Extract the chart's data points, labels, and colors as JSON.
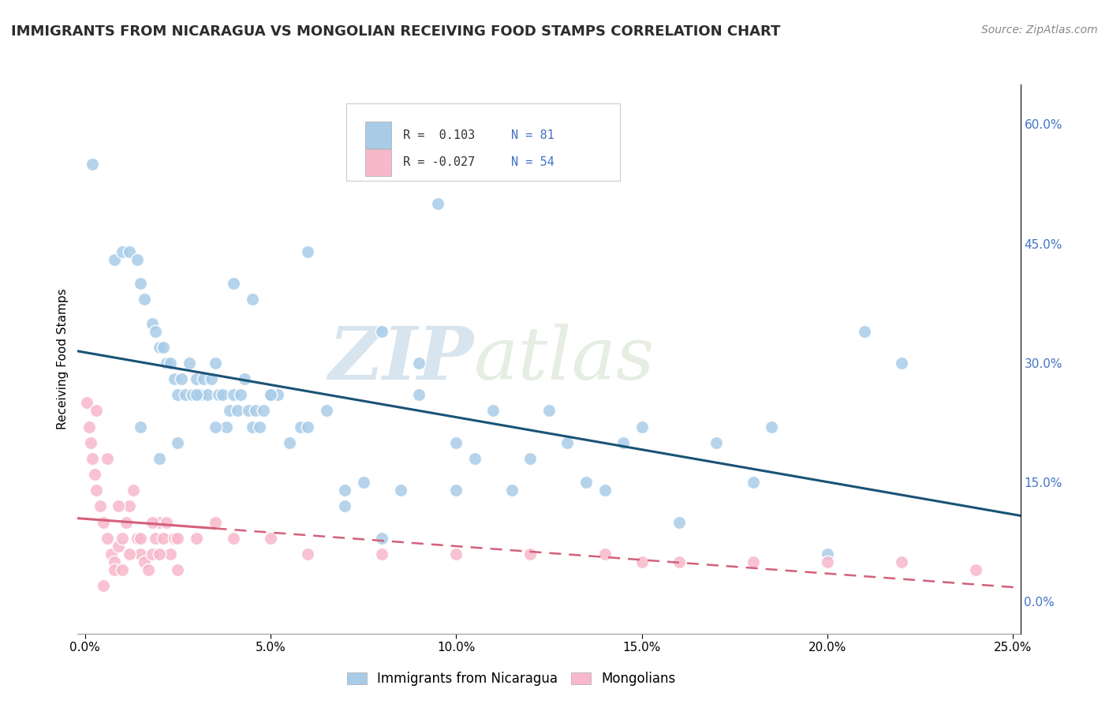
{
  "title": "IMMIGRANTS FROM NICARAGUA VS MONGOLIAN RECEIVING FOOD STAMPS CORRELATION CHART",
  "source_text": "Source: ZipAtlas.com",
  "xlabel_nicaragua": "Immigrants from Nicaragua",
  "xlabel_mongolian": "Mongolians",
  "ylabel": "Receiving Food Stamps",
  "watermark_zip": "ZIP",
  "watermark_atlas": "atlas",
  "xlim": [
    -0.002,
    0.252
  ],
  "ylim": [
    -0.04,
    0.65
  ],
  "xticks": [
    0.0,
    0.05,
    0.1,
    0.15,
    0.2,
    0.25
  ],
  "xticklabels": [
    "0.0%",
    "5.0%",
    "10.0%",
    "15.0%",
    "20.0%",
    "25.0%"
  ],
  "yticks_right": [
    0.0,
    0.15,
    0.3,
    0.45,
    0.6
  ],
  "yticklabels_right": [
    "0.0%",
    "15.0%",
    "30.0%",
    "45.0%",
    "60.0%"
  ],
  "nicaragua_color": "#a8cce8",
  "mongolian_color": "#f7b8cb",
  "nicaragua_line_color": "#1a5276",
  "mongolian_line_color": "#d4607a",
  "legend_r_nicaragua": "R =  0.103",
  "legend_n_nicaragua": "N = 81",
  "legend_r_mongolian": "R = -0.027",
  "legend_n_mongolian": "N = 54",
  "background_color": "#ffffff",
  "grid_color": "#cccccc",
  "nicaragua_scatter_x": [
    0.002,
    0.008,
    0.01,
    0.012,
    0.014,
    0.015,
    0.016,
    0.018,
    0.019,
    0.02,
    0.021,
    0.022,
    0.023,
    0.024,
    0.025,
    0.026,
    0.027,
    0.028,
    0.029,
    0.03,
    0.031,
    0.032,
    0.033,
    0.034,
    0.035,
    0.036,
    0.037,
    0.038,
    0.039,
    0.04,
    0.041,
    0.042,
    0.043,
    0.044,
    0.045,
    0.046,
    0.047,
    0.048,
    0.05,
    0.052,
    0.055,
    0.058,
    0.06,
    0.065,
    0.07,
    0.075,
    0.08,
    0.085,
    0.09,
    0.095,
    0.1,
    0.105,
    0.11,
    0.115,
    0.12,
    0.125,
    0.13,
    0.135,
    0.14,
    0.145,
    0.015,
    0.02,
    0.025,
    0.03,
    0.035,
    0.04,
    0.045,
    0.05,
    0.06,
    0.07,
    0.08,
    0.09,
    0.1,
    0.15,
    0.16,
    0.17,
    0.18,
    0.2,
    0.21,
    0.22,
    0.185
  ],
  "nicaragua_scatter_y": [
    0.55,
    0.43,
    0.44,
    0.44,
    0.43,
    0.4,
    0.38,
    0.35,
    0.34,
    0.32,
    0.32,
    0.3,
    0.3,
    0.28,
    0.26,
    0.28,
    0.26,
    0.3,
    0.26,
    0.28,
    0.26,
    0.28,
    0.26,
    0.28,
    0.3,
    0.26,
    0.26,
    0.22,
    0.24,
    0.26,
    0.24,
    0.26,
    0.28,
    0.24,
    0.22,
    0.24,
    0.22,
    0.24,
    0.26,
    0.26,
    0.2,
    0.22,
    0.44,
    0.24,
    0.14,
    0.15,
    0.34,
    0.14,
    0.26,
    0.5,
    0.14,
    0.18,
    0.24,
    0.14,
    0.18,
    0.24,
    0.2,
    0.15,
    0.14,
    0.2,
    0.22,
    0.18,
    0.2,
    0.26,
    0.22,
    0.4,
    0.38,
    0.26,
    0.22,
    0.12,
    0.08,
    0.3,
    0.2,
    0.22,
    0.1,
    0.2,
    0.15,
    0.06,
    0.34,
    0.3,
    0.22
  ],
  "mongolian_scatter_x": [
    0.0005,
    0.001,
    0.0015,
    0.002,
    0.0025,
    0.003,
    0.004,
    0.005,
    0.006,
    0.007,
    0.008,
    0.009,
    0.01,
    0.011,
    0.012,
    0.013,
    0.014,
    0.015,
    0.016,
    0.017,
    0.018,
    0.019,
    0.02,
    0.021,
    0.022,
    0.023,
    0.024,
    0.025,
    0.03,
    0.035,
    0.04,
    0.05,
    0.06,
    0.08,
    0.1,
    0.12,
    0.14,
    0.15,
    0.16,
    0.18,
    0.2,
    0.22,
    0.24,
    0.005,
    0.008,
    0.01,
    0.012,
    0.015,
    0.018,
    0.02,
    0.003,
    0.006,
    0.009,
    0.025
  ],
  "mongolian_scatter_y": [
    0.25,
    0.22,
    0.2,
    0.18,
    0.16,
    0.14,
    0.12,
    0.1,
    0.08,
    0.06,
    0.05,
    0.07,
    0.08,
    0.1,
    0.12,
    0.14,
    0.08,
    0.06,
    0.05,
    0.04,
    0.06,
    0.08,
    0.1,
    0.08,
    0.1,
    0.06,
    0.08,
    0.04,
    0.08,
    0.1,
    0.08,
    0.08,
    0.06,
    0.06,
    0.06,
    0.06,
    0.06,
    0.05,
    0.05,
    0.05,
    0.05,
    0.05,
    0.04,
    0.02,
    0.04,
    0.04,
    0.06,
    0.08,
    0.1,
    0.06,
    0.24,
    0.18,
    0.12,
    0.08
  ],
  "title_fontsize": 13,
  "source_fontsize": 10,
  "tick_fontsize": 11,
  "ylabel_fontsize": 11
}
